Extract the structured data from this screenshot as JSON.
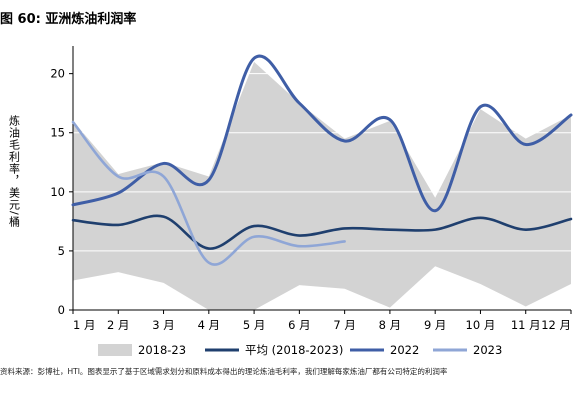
{
  "figure_title": "图 60:  亚洲炼油利润率",
  "source_note": "资料来源：彭博社，HTI。图表显示了基于区域需求划分和原料成本得出的理论炼油毛利率，我们理解每家炼油厂都有公司特定的利润率",
  "colors": {
    "band": "#d3d3d3",
    "avg": "#1f3f6e",
    "y2022": "#3f5ea6",
    "y2023": "#8fa6d6",
    "axis": "#000000",
    "grid": "#ffffff"
  },
  "chart_data": {
    "type": "line",
    "title": "",
    "xlabel": "",
    "ylabel": "炼油毛利率，美元/桶",
    "categories": [
      "1 月",
      "2 月",
      "3 月",
      "4 月",
      "5 月",
      "6 月",
      "7 月",
      "8 月",
      "9 月",
      "10 月",
      "11 月",
      "12 月"
    ],
    "x_points": [
      1,
      2,
      3,
      4,
      5,
      6,
      7,
      8,
      9,
      10,
      11,
      12
    ],
    "ylim": [
      0,
      22
    ],
    "yticks": [
      0,
      5,
      10,
      15,
      20
    ],
    "grid": true,
    "legend_position": "bottom",
    "band": {
      "name": "2018-23",
      "upper": [
        16.0,
        11.5,
        12.5,
        11.3,
        21.0,
        17.5,
        14.5,
        16.0,
        9.5,
        17.0,
        14.5,
        16.5
      ],
      "lower": [
        2.5,
        3.2,
        2.3,
        0.0,
        0.0,
        2.1,
        1.8,
        0.2,
        3.7,
        2.2,
        0.3,
        2.2
      ]
    },
    "series": [
      {
        "name": "平均 (2018-2023)",
        "x": [
          1,
          2,
          3,
          4,
          5,
          6,
          7,
          8,
          9,
          10,
          11,
          12
        ],
        "values": [
          7.6,
          7.2,
          7.9,
          5.2,
          7.1,
          6.3,
          6.9,
          6.8,
          6.8,
          7.8,
          6.8,
          7.7
        ]
      },
      {
        "name": "2022",
        "x": [
          1,
          2,
          3,
          4,
          5,
          6,
          7,
          8,
          9,
          10,
          11,
          12
        ],
        "values": [
          8.9,
          9.9,
          12.4,
          11.0,
          21.3,
          17.5,
          14.3,
          16.1,
          8.4,
          17.2,
          14.0,
          16.5
        ]
      },
      {
        "name": "2023",
        "x": [
          1,
          2,
          3,
          4,
          5,
          6,
          7
        ],
        "values": [
          15.9,
          11.3,
          11.3,
          4.0,
          6.2,
          5.4,
          5.8
        ]
      }
    ]
  }
}
